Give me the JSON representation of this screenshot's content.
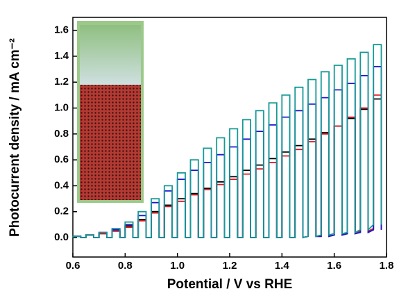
{
  "chart_data": {
    "type": "chopped-line",
    "xlabel": "Potential / V vs RHE",
    "ylabel": "Photocurrent density / mA cm⁻²",
    "x": [
      0.6,
      0.65,
      0.7,
      0.75,
      0.8,
      0.85,
      0.9,
      0.95,
      1.0,
      1.05,
      1.1,
      1.15,
      1.2,
      1.25,
      1.3,
      1.35,
      1.4,
      1.45,
      1.5,
      1.55,
      1.6,
      1.65,
      1.7,
      1.75
    ],
    "x_off": [
      0.63,
      0.68,
      0.73,
      0.78,
      0.83,
      0.88,
      0.93,
      0.98,
      1.03,
      1.08,
      1.13,
      1.18,
      1.23,
      1.28,
      1.33,
      1.38,
      1.43,
      1.48,
      1.53,
      1.58,
      1.63,
      1.68,
      1.73,
      1.78
    ],
    "series": [
      {
        "color": "#000000",
        "values": [
          0.01,
          0.02,
          0.03,
          0.05,
          0.09,
          0.14,
          0.2,
          0.25,
          0.3,
          0.34,
          0.38,
          0.43,
          0.47,
          0.52,
          0.56,
          0.61,
          0.66,
          0.71,
          0.76,
          0.81,
          0.86,
          0.92,
          0.99,
          1.07
        ],
        "dark": [
          0,
          0,
          0,
          0,
          0,
          0,
          0,
          0,
          0,
          0,
          0,
          0,
          0,
          0,
          0,
          0,
          0,
          0,
          0.01,
          0.01,
          0.02,
          0.03,
          0.04,
          0.06
        ]
      },
      {
        "color": "#e0141e",
        "values": [
          0.01,
          0.02,
          0.03,
          0.05,
          0.08,
          0.13,
          0.19,
          0.24,
          0.28,
          0.33,
          0.37,
          0.41,
          0.45,
          0.49,
          0.53,
          0.58,
          0.63,
          0.68,
          0.74,
          0.8,
          0.86,
          0.93,
          1.0,
          1.1
        ],
        "dark": [
          0,
          0,
          0,
          0,
          0,
          0,
          0,
          0,
          0,
          0,
          0,
          0,
          0,
          0,
          0,
          0,
          0,
          0,
          0.01,
          0.01,
          0.02,
          0.03,
          0.05,
          0.07
        ]
      },
      {
        "color": "#1a1ad0",
        "values": [
          0.01,
          0.02,
          0.04,
          0.06,
          0.1,
          0.17,
          0.27,
          0.36,
          0.45,
          0.52,
          0.58,
          0.64,
          0.7,
          0.76,
          0.82,
          0.87,
          0.93,
          0.98,
          1.03,
          1.08,
          1.14,
          1.19,
          1.25,
          1.32
        ],
        "dark": [
          0,
          0,
          0,
          0,
          0,
          0,
          0,
          0,
          0,
          0,
          0,
          0,
          0,
          0,
          0,
          0,
          0,
          0,
          0.01,
          0.01,
          0.02,
          0.03,
          0.04,
          0.06
        ]
      },
      {
        "color": "#159a96",
        "values": [
          0.01,
          0.02,
          0.04,
          0.07,
          0.12,
          0.2,
          0.3,
          0.4,
          0.5,
          0.6,
          0.69,
          0.77,
          0.84,
          0.91,
          0.98,
          1.04,
          1.1,
          1.16,
          1.22,
          1.28,
          1.33,
          1.38,
          1.43,
          1.49
        ],
        "dark": [
          0,
          0,
          0,
          0,
          0,
          0,
          0,
          0,
          0,
          0,
          0,
          0,
          0,
          0,
          0,
          0,
          0,
          0,
          0.01,
          0.02,
          0.03,
          0.04,
          0.06,
          0.1
        ]
      }
    ],
    "xlim": [
      0.6,
      1.8
    ],
    "xticks": [
      0.6,
      0.8,
      {
        "value": 1.0,
        "label": "1.0"
      },
      1.2,
      1.4,
      1.6,
      1.8
    ],
    "ylim": [
      -0.15,
      1.7
    ],
    "yticks": [
      {
        "value": 0.0,
        "label": "0.0"
      },
      0.2,
      0.4,
      0.6,
      0.8,
      {
        "value": 1.0,
        "label": "1.0"
      },
      1.2,
      1.4,
      1.6
    ]
  }
}
